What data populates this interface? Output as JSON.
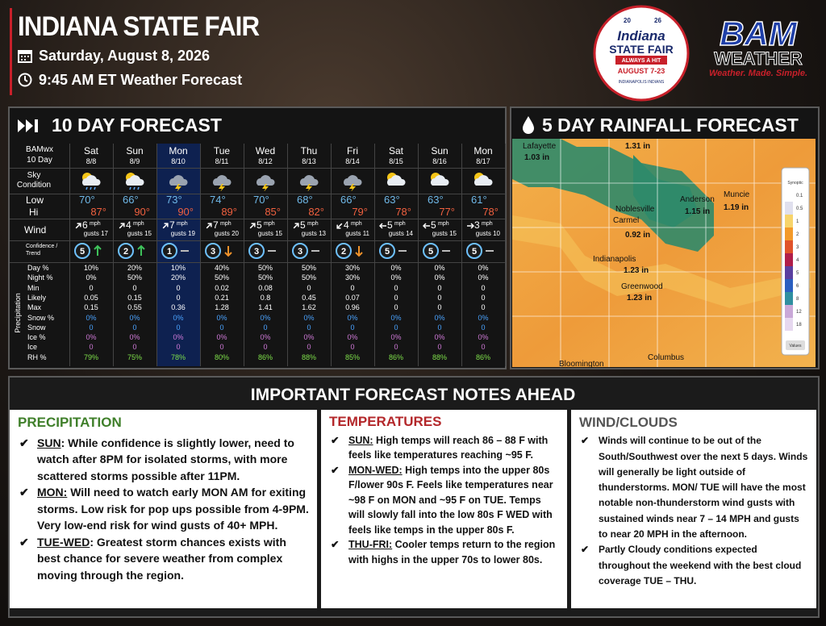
{
  "header": {
    "title": "INDIANA STATE FAIR",
    "date": "Saturday, August 8, 2026",
    "time": "9:45 AM ET Weather Forecast"
  },
  "fair_logo": {
    "year_left": "20",
    "year_right": "26",
    "name_top": "Indiana",
    "name_bottom": "STATE FAIR",
    "tagline": "ALWAYS A HIT",
    "dates": "AUGUST 7-23",
    "sponsor": "INDIANAPOLIS INDIANS"
  },
  "bam_logo": {
    "name": "BAM",
    "sub": "WEATHER",
    "slogan": "Weather. Made. Simple."
  },
  "forecast": {
    "title": "10 DAY FORECAST",
    "corner": [
      "BAMwx",
      "10 Day"
    ],
    "labels": {
      "sky": "Sky Condition",
      "low": "Low",
      "hi": "Hi",
      "wind": "Wind",
      "confidence": "Confidence / Trend",
      "precip_group": "Precipitation"
    },
    "precip_rows": [
      "Day %",
      "Night %",
      "Min",
      "Likely",
      "Max",
      "Snow %",
      "Snow",
      "Ice %",
      "Ice",
      "RH %"
    ],
    "precip_colors": [
      "#ffffff",
      "#ffffff",
      "#ffffff",
      "#ffffff",
      "#ffffff",
      "#4aa3ff",
      "#4aa3ff",
      "#d07ad8",
      "#d07ad8",
      "#7ee04a"
    ],
    "highlight": 2,
    "days": [
      {
        "day": "Sat",
        "date": "8/8",
        "sky": "rain",
        "low": "70°",
        "hi": "87°",
        "wind_dir": 45,
        "wind": 6,
        "wind_unit": "mph",
        "gusts": "gusts 17",
        "confidence": 5,
        "trend": "up",
        "precip": [
          "10%",
          "0%",
          "0",
          "0.05",
          "0.15",
          "0%",
          "0",
          "0%",
          "0",
          "79%"
        ]
      },
      {
        "day": "Sun",
        "date": "8/9",
        "sky": "rain",
        "low": "66°",
        "hi": "90°",
        "wind_dir": 45,
        "wind": 4,
        "wind_unit": "mph",
        "gusts": "gusts 15",
        "confidence": 2,
        "trend": "up",
        "precip": [
          "20%",
          "50%",
          "0",
          "0.15",
          "0.55",
          "0%",
          "0",
          "0%",
          "0",
          "75%"
        ]
      },
      {
        "day": "Mon",
        "date": "8/10",
        "sky": "storm",
        "low": "73°",
        "hi": "90°",
        "wind_dir": 45,
        "wind": 7,
        "wind_unit": "mph",
        "gusts": "gusts 19",
        "confidence": 1,
        "trend": "flat",
        "precip": [
          "10%",
          "20%",
          "0",
          "0",
          "0.36",
          "0%",
          "0",
          "0%",
          "0",
          "78%"
        ]
      },
      {
        "day": "Tue",
        "date": "8/11",
        "sky": "storm",
        "low": "74°",
        "hi": "89°",
        "wind_dir": 45,
        "wind": 7,
        "wind_unit": "mph",
        "gusts": "gusts 20",
        "confidence": 3,
        "trend": "down",
        "precip": [
          "40%",
          "50%",
          "0.02",
          "0.21",
          "1.28",
          "0%",
          "0",
          "0%",
          "0",
          "80%"
        ]
      },
      {
        "day": "Wed",
        "date": "8/12",
        "sky": "storm",
        "low": "70°",
        "hi": "85°",
        "wind_dir": 45,
        "wind": 5,
        "wind_unit": "mph",
        "gusts": "gusts 15",
        "confidence": 3,
        "trend": "flat",
        "precip": [
          "50%",
          "50%",
          "0.08",
          "0.8",
          "1.41",
          "0%",
          "0",
          "0%",
          "0",
          "86%"
        ]
      },
      {
        "day": "Thu",
        "date": "8/13",
        "sky": "storm",
        "low": "68°",
        "hi": "82°",
        "wind_dir": 45,
        "wind": 5,
        "wind_unit": "mph",
        "gusts": "gusts 13",
        "confidence": 3,
        "trend": "flat",
        "precip": [
          "50%",
          "50%",
          "0",
          "0.45",
          "1.62",
          "0%",
          "0",
          "0%",
          "0",
          "88%"
        ]
      },
      {
        "day": "Fri",
        "date": "8/14",
        "sky": "storm",
        "low": "66°",
        "hi": "79°",
        "wind_dir": 225,
        "wind": 4,
        "wind_unit": "mph",
        "gusts": "gusts 11",
        "confidence": 2,
        "trend": "down",
        "precip": [
          "30%",
          "30%",
          "0",
          "0.07",
          "0.96",
          "0%",
          "0",
          "0%",
          "0",
          "85%"
        ]
      },
      {
        "day": "Sat",
        "date": "8/15",
        "sky": "partly",
        "low": "63°",
        "hi": "78°",
        "wind_dir": 270,
        "wind": 5,
        "wind_unit": "mph",
        "gusts": "gusts 14",
        "confidence": 5,
        "trend": "flat",
        "precip": [
          "0%",
          "0%",
          "0",
          "0",
          "0",
          "0%",
          "0",
          "0%",
          "0",
          "86%"
        ]
      },
      {
        "day": "Sun",
        "date": "8/16",
        "sky": "partly",
        "low": "63°",
        "hi": "77°",
        "wind_dir": 270,
        "wind": 5,
        "wind_unit": "mph",
        "gusts": "gusts 15",
        "confidence": 5,
        "trend": "flat",
        "precip": [
          "0%",
          "0%",
          "0",
          "0",
          "0",
          "0%",
          "0",
          "0%",
          "0",
          "88%"
        ]
      },
      {
        "day": "Mon",
        "date": "8/17",
        "sky": "partly",
        "low": "61°",
        "hi": "78°",
        "wind_dir": 90,
        "wind": 3,
        "wind_unit": "mph",
        "gusts": "gusts 10",
        "confidence": 5,
        "trend": "flat",
        "precip": [
          "0%",
          "0%",
          "0",
          "0",
          "0",
          "0%",
          "0",
          "0%",
          "0",
          "86%"
        ]
      }
    ]
  },
  "rainfall": {
    "title": "5 DAY RAINFALL FORECAST",
    "labels": [
      {
        "text": "Lafayette"
      },
      {
        "text": "1.03 in"
      },
      {
        "text": "1.31 in"
      },
      {
        "text": "Noblesville"
      },
      {
        "text": "Anderson"
      },
      {
        "text": "1.15 in"
      },
      {
        "text": "Muncie"
      },
      {
        "text": "1.19 in"
      },
      {
        "text": "Carmel"
      },
      {
        "text": "0.92 in"
      },
      {
        "text": "Indianapolis"
      },
      {
        "text": "1.23 in"
      },
      {
        "text": "Greenwood"
      },
      {
        "text": "1.23 in"
      },
      {
        "text": "Columbus"
      },
      {
        "text": "Bloomington"
      }
    ],
    "legend": {
      "title": "Synoptic",
      "steps": [
        "0.1",
        "0.5",
        "1",
        "2",
        "3",
        "4",
        "5",
        "6",
        "8",
        "12",
        "18"
      ],
      "colors": [
        "#ffffff",
        "#e0e0ee",
        "#f7d46b",
        "#f39a2a",
        "#e0532a",
        "#b01e4a",
        "#5a3fa0",
        "#2a5fc0",
        "#2f8fa0",
        "#c9a8d8",
        "#e6d8ef"
      ],
      "button": "Values"
    }
  },
  "notes": {
    "title": "IMPORTANT FORECAST NOTES AHEAD",
    "columns": [
      {
        "heading": "PRECIPITATION",
        "color": "#3f7f2a",
        "bullets": [
          {
            "lead": "SUN",
            "text": ": While confidence is slightly lower, need to watch after 8PM for isolated storms, with more scattered storms possible after 11PM."
          },
          {
            "lead": "MON:",
            "text": " Will need to watch early MON AM for exiting storms. Low risk for pop ups possible from 4-9PM. Very low-end risk for wind gusts of 40+ MPH."
          },
          {
            "lead": "TUE-WED",
            "text": ": Greatest storm chances exists with best chance for severe weather from complex moving through the region."
          }
        ]
      },
      {
        "heading": "TEMPERATURES",
        "color": "#b3272a",
        "bullets": [
          {
            "lead": "SUN:",
            "text": " High temps will reach 86 – 88 F with feels like temperatures reaching ~95 F."
          },
          {
            "lead": "MON-WED:",
            "text": " High temps into the upper 80s F/lower 90s F. Feels like temperatures near ~98 F on MON and ~95 F on TUE. Temps will slowly fall into the low 80s F WED with feels like temps in the upper 80s F."
          },
          {
            "lead": "THU-FRI:",
            "text": " Cooler temps return to the region with highs in the upper 70s to lower 80s."
          }
        ]
      },
      {
        "heading": "WIND/CLOUDS",
        "color": "#555555",
        "bullets": [
          {
            "text": "Winds will continue to be out of the South/Southwest over the next 5 days. Winds will generally be light outside of thunderstorms.  MON/ TUE will have the most notable non-thunderstorm wind gusts with sustained winds near 7 – 14 MPH and gusts to near 20 MPH in the afternoon."
          },
          {
            "text": "Partly Cloudy conditions expected throughout the weekend with the best cloud coverage TUE – THU."
          }
        ]
      }
    ]
  }
}
